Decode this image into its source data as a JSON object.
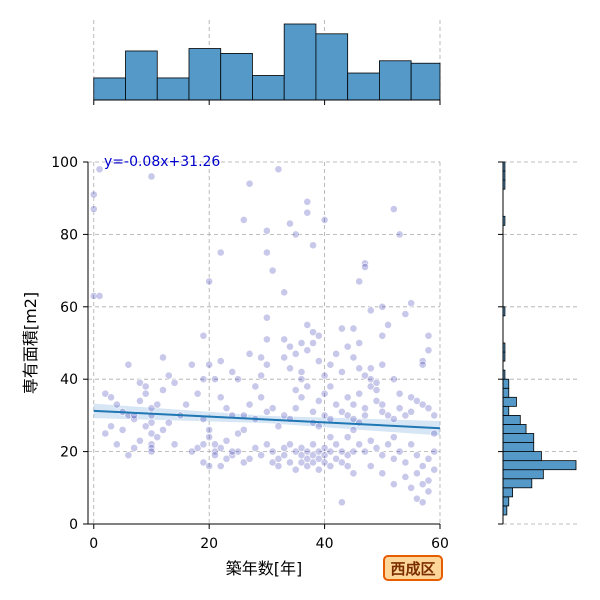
{
  "badge": {
    "ward": "西成区"
  },
  "chart_data": [
    {
      "type": "scatter",
      "xlabel": "築年数[年]",
      "ylabel": "専有面積[m2]",
      "xlim": [
        -1,
        60
      ],
      "ylim": [
        0,
        100
      ],
      "xticks": [
        0,
        20,
        40,
        60
      ],
      "yticks": [
        0,
        20,
        40,
        60,
        80,
        100
      ],
      "grid": true,
      "annotation": "y=-0.08x+31.26",
      "regression": {
        "slope": -0.08,
        "intercept": 31.26
      },
      "colors": {
        "point": "#2222aa",
        "line": "#1f77b4",
        "band": "#a6c8e8"
      },
      "points": [
        [
          1,
          98
        ],
        [
          0,
          91
        ],
        [
          0,
          87
        ],
        [
          0,
          63
        ],
        [
          1,
          63
        ],
        [
          10,
          96
        ],
        [
          27,
          94
        ],
        [
          32,
          98
        ],
        [
          37,
          89
        ],
        [
          37,
          86
        ],
        [
          38,
          77
        ],
        [
          40,
          84
        ],
        [
          30,
          81
        ],
        [
          35,
          80
        ],
        [
          26,
          84
        ],
        [
          22,
          75
        ],
        [
          30,
          75
        ],
        [
          34,
          83
        ],
        [
          31,
          70
        ],
        [
          33,
          64
        ],
        [
          20,
          67
        ],
        [
          52,
          87
        ],
        [
          47,
          72
        ],
        [
          47,
          71
        ],
        [
          46,
          67
        ],
        [
          53,
          80
        ],
        [
          50,
          60
        ],
        [
          48,
          59
        ],
        [
          45,
          54
        ],
        [
          43,
          54
        ],
        [
          46,
          50
        ],
        [
          50,
          52
        ],
        [
          51,
          55
        ],
        [
          54,
          58
        ],
        [
          55,
          61
        ],
        [
          58,
          52
        ],
        [
          58,
          48
        ],
        [
          57,
          45
        ],
        [
          57,
          44
        ],
        [
          2,
          36
        ],
        [
          3,
          35
        ],
        [
          4,
          33
        ],
        [
          5,
          31
        ],
        [
          6,
          30
        ],
        [
          7,
          29
        ],
        [
          8,
          34
        ],
        [
          9,
          36
        ],
        [
          10,
          32
        ],
        [
          10,
          30
        ],
        [
          10,
          28
        ],
        [
          10,
          25
        ],
        [
          10,
          22
        ],
        [
          10,
          21
        ],
        [
          10,
          20
        ],
        [
          11,
          33
        ],
        [
          12,
          37
        ],
        [
          13,
          41
        ],
        [
          14,
          39
        ],
        [
          8,
          39
        ],
        [
          6,
          44
        ],
        [
          9,
          38
        ],
        [
          12,
          46
        ],
        [
          7,
          30
        ],
        [
          5,
          26
        ],
        [
          4,
          22
        ],
        [
          3,
          27
        ],
        [
          2,
          25
        ],
        [
          6,
          19
        ],
        [
          7,
          21
        ],
        [
          8,
          23
        ],
        [
          9,
          27
        ],
        [
          11,
          24
        ],
        [
          12,
          26
        ],
        [
          13,
          28
        ],
        [
          14,
          22
        ],
        [
          15,
          30
        ],
        [
          16,
          33
        ],
        [
          17,
          44
        ],
        [
          18,
          36
        ],
        [
          19,
          40
        ],
        [
          19,
          29
        ],
        [
          20,
          26
        ],
        [
          20,
          24
        ],
        [
          21,
          22
        ],
        [
          21,
          20
        ],
        [
          22,
          21
        ],
        [
          23,
          23
        ],
        [
          24,
          19
        ],
        [
          25,
          20
        ],
        [
          25,
          25
        ],
        [
          26,
          26
        ],
        [
          24,
          30
        ],
        [
          23,
          32
        ],
        [
          22,
          35
        ],
        [
          21,
          40
        ],
        [
          20,
          44
        ],
        [
          19,
          52
        ],
        [
          22,
          45
        ],
        [
          25,
          40
        ],
        [
          24,
          42
        ],
        [
          17,
          20
        ],
        [
          18,
          21
        ],
        [
          19,
          22
        ],
        [
          19,
          17
        ],
        [
          20,
          16
        ],
        [
          21,
          19
        ],
        [
          22,
          16
        ],
        [
          23,
          18
        ],
        [
          24,
          20
        ],
        [
          26,
          17
        ],
        [
          27,
          18
        ],
        [
          28,
          21
        ],
        [
          29,
          19
        ],
        [
          30,
          22
        ],
        [
          31,
          20
        ],
        [
          31,
          17
        ],
        [
          32,
          18
        ],
        [
          32,
          16
        ],
        [
          33,
          19
        ],
        [
          33,
          21
        ],
        [
          34,
          17
        ],
        [
          34,
          22
        ],
        [
          35,
          20
        ],
        [
          35,
          15
        ],
        [
          36,
          17
        ],
        [
          36,
          19
        ],
        [
          36,
          21
        ],
        [
          37,
          16
        ],
        [
          37,
          18
        ],
        [
          37,
          20
        ],
        [
          38,
          22
        ],
        [
          38,
          19
        ],
        [
          38,
          17
        ],
        [
          39,
          18
        ],
        [
          39,
          20
        ],
        [
          39,
          15
        ],
        [
          40,
          21
        ],
        [
          40,
          17
        ],
        [
          40,
          19
        ],
        [
          41,
          16
        ],
        [
          41,
          20
        ],
        [
          41,
          24
        ],
        [
          42,
          18
        ],
        [
          42,
          22
        ],
        [
          43,
          17
        ],
        [
          43,
          20
        ],
        [
          44,
          19
        ],
        [
          44,
          16
        ],
        [
          45,
          20
        ],
        [
          45,
          14
        ],
        [
          26,
          30
        ],
        [
          27,
          33
        ],
        [
          28,
          29
        ],
        [
          29,
          35
        ],
        [
          30,
          31
        ],
        [
          31,
          32
        ],
        [
          32,
          27
        ],
        [
          33,
          30
        ],
        [
          34,
          29
        ],
        [
          35,
          32
        ],
        [
          35,
          37
        ],
        [
          36,
          35
        ],
        [
          36,
          40
        ],
        [
          37,
          38
        ],
        [
          38,
          31
        ],
        [
          38,
          28
        ],
        [
          39,
          27
        ],
        [
          39,
          34
        ],
        [
          40,
          36
        ],
        [
          40,
          30
        ],
        [
          41,
          29
        ],
        [
          41,
          38
        ],
        [
          42,
          33
        ],
        [
          43,
          31
        ],
        [
          44,
          30
        ],
        [
          44,
          35
        ],
        [
          45,
          29
        ],
        [
          45,
          33
        ],
        [
          46,
          28
        ],
        [
          46,
          36
        ],
        [
          47,
          32
        ],
        [
          47,
          30
        ],
        [
          48,
          38
        ],
        [
          48,
          43
        ],
        [
          49,
          37
        ],
        [
          49,
          34
        ],
        [
          50,
          33
        ],
        [
          50,
          31
        ],
        [
          51,
          30
        ],
        [
          52,
          29
        ],
        [
          52,
          40
        ],
        [
          53,
          36
        ],
        [
          53,
          32
        ],
        [
          54,
          30
        ],
        [
          55,
          35
        ],
        [
          55,
          31
        ],
        [
          56,
          34
        ],
        [
          57,
          33
        ],
        [
          58,
          32
        ],
        [
          59,
          30
        ],
        [
          59,
          25
        ],
        [
          46,
          22
        ],
        [
          47,
          20
        ],
        [
          48,
          23
        ],
        [
          49,
          21
        ],
        [
          50,
          19
        ],
        [
          51,
          22
        ],
        [
          52,
          18
        ],
        [
          52,
          24
        ],
        [
          53,
          20
        ],
        [
          54,
          17
        ],
        [
          55,
          22
        ],
        [
          56,
          19
        ],
        [
          56,
          14
        ],
        [
          57,
          16
        ],
        [
          58,
          12
        ],
        [
          58,
          18
        ],
        [
          59,
          20
        ],
        [
          59,
          15
        ],
        [
          57,
          11
        ],
        [
          58,
          9
        ],
        [
          56,
          7
        ],
        [
          57,
          6
        ],
        [
          54,
          13
        ],
        [
          55,
          10
        ],
        [
          43,
          6
        ],
        [
          50,
          14
        ],
        [
          52,
          11
        ],
        [
          48,
          16
        ],
        [
          45,
          26
        ],
        [
          44,
          24
        ],
        [
          28,
          38
        ],
        [
          29,
          41
        ],
        [
          30,
          44
        ],
        [
          33,
          46
        ],
        [
          34,
          43
        ],
        [
          35,
          47
        ],
        [
          36,
          42
        ],
        [
          37,
          48
        ],
        [
          38,
          50
        ],
        [
          39,
          45
        ],
        [
          40,
          41
        ],
        [
          41,
          44
        ],
        [
          42,
          47
        ],
        [
          43,
          42
        ],
        [
          44,
          49
        ],
        [
          45,
          46
        ],
        [
          46,
          43
        ],
        [
          47,
          41
        ],
        [
          48,
          40
        ],
        [
          49,
          39
        ],
        [
          50,
          44
        ],
        [
          38,
          53
        ],
        [
          39,
          52
        ],
        [
          37,
          55
        ],
        [
          36,
          50
        ],
        [
          29,
          46
        ],
        [
          27,
          47
        ],
        [
          30,
          57
        ],
        [
          30,
          51
        ],
        [
          33,
          51
        ],
        [
          34,
          49
        ]
      ]
    },
    {
      "type": "bar",
      "role": "x-marginal-histogram",
      "bin_edges": [
        0,
        5.5,
        11,
        16.5,
        22,
        27.5,
        33,
        38.5,
        44,
        49.5,
        55,
        60.5
      ],
      "values": [
        9,
        20,
        9,
        21,
        19,
        10,
        31,
        27,
        11,
        16,
        15
      ]
    },
    {
      "type": "bar",
      "role": "y-marginal-histogram",
      "bin_edges": [
        2.5,
        5,
        7.5,
        10,
        12.5,
        15,
        17.5,
        20,
        22.5,
        25,
        27.5,
        30,
        32.5,
        35,
        37.5,
        40,
        42.5,
        45,
        47.5,
        50,
        52.5,
        55,
        57.5,
        60,
        62.5,
        65,
        67.5,
        70,
        72.5,
        75,
        77.5,
        80,
        82.5,
        85,
        87.5,
        90,
        92.5,
        95,
        97.5,
        100
      ],
      "values": [
        2,
        3,
        5,
        15,
        21,
        38,
        20,
        16,
        16,
        12,
        9,
        3,
        7,
        3,
        3,
        1,
        0,
        1,
        1,
        0,
        0,
        0,
        1,
        0,
        0,
        0,
        0,
        0,
        0,
        0,
        0,
        0,
        1,
        0,
        0,
        0,
        1,
        1,
        1
      ]
    }
  ]
}
